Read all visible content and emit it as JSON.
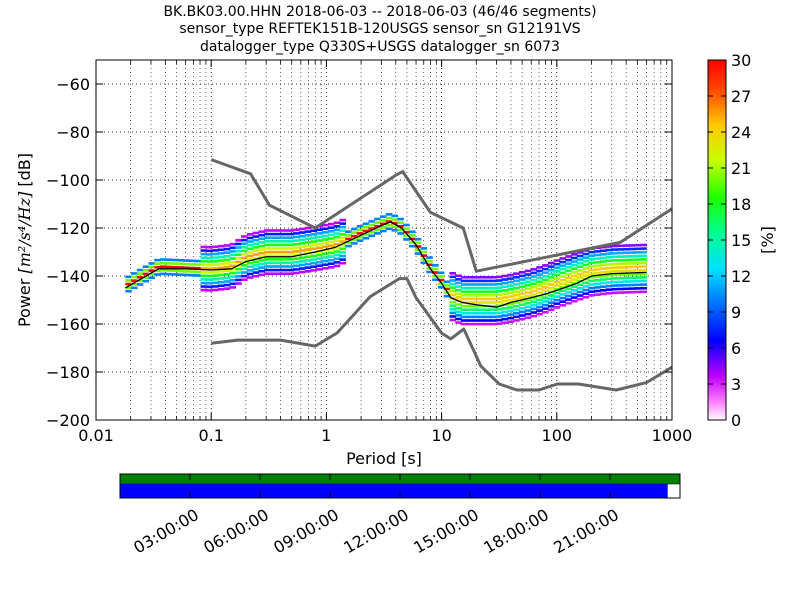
{
  "title_lines": [
    "BK.BK03.00.HHN   2018-06-03 -- 2018-06-03  (46/46 segments)",
    "sensor_type REFTEK151B-120USGS sensor_sn G12191VS",
    "datalogger_type Q330S+USGS datalogger_sn 6073"
  ],
  "colorbar": {
    "label": "[%]",
    "ticks": [
      "0",
      "3",
      "6",
      "9",
      "12",
      "15",
      "18",
      "21",
      "24",
      "27",
      "30"
    ],
    "range": [
      0,
      30
    ]
  },
  "timeline": {
    "ticks": [
      "03:00:00",
      "06:00:00",
      "09:00:00",
      "12:00:00",
      "15:00:00",
      "18:00:00",
      "21:00:00"
    ],
    "top_bar_color": "#008000",
    "bottom_bar_color": "#0000ff",
    "coverage_fraction": 0.978
  },
  "chart_data": {
    "type": "heatmap",
    "xlabel": "Period [s]",
    "ylabel_prefix": "Power ",
    "ylabel_math": "[m²/s⁴/Hz]",
    "ylabel_suffix": " [dB]",
    "xscale": "log",
    "xlim": [
      0.01,
      1000
    ],
    "ylim": [
      -200,
      -50
    ],
    "x_ticks": [
      {
        "value": 0.01,
        "label": "0.01"
      },
      {
        "value": 0.1,
        "label": "0.1"
      },
      {
        "value": 1,
        "label": "1"
      },
      {
        "value": 10,
        "label": "10"
      },
      {
        "value": 100,
        "label": "100"
      },
      {
        "value": 1000,
        "label": "1000"
      }
    ],
    "y_ticks": [
      {
        "value": -60,
        "label": "−60"
      },
      {
        "value": -80,
        "label": "−80"
      },
      {
        "value": -100,
        "label": "−100"
      },
      {
        "value": -120,
        "label": "−120"
      },
      {
        "value": -140,
        "label": "−140"
      },
      {
        "value": -160,
        "label": "−160"
      },
      {
        "value": -180,
        "label": "−180"
      },
      {
        "value": -200,
        "label": "−200"
      }
    ],
    "grid": "dotted",
    "nhnm": [
      [
        0.1,
        -91.5
      ],
      [
        0.22,
        -97.4
      ],
      [
        0.32,
        -110.5
      ],
      [
        0.8,
        -120
      ],
      [
        4,
        -98
      ],
      [
        4.6,
        -96.5
      ],
      [
        8,
        -113.5
      ],
      [
        15.4,
        -120
      ],
      [
        20,
        -138
      ],
      [
        354.8,
        -126
      ],
      [
        1000,
        -112
      ]
    ],
    "nlnm": [
      [
        0.1,
        -168
      ],
      [
        0.17,
        -166.7
      ],
      [
        0.4,
        -166.7
      ],
      [
        0.8,
        -169.2
      ],
      [
        1.24,
        -163.7
      ],
      [
        2.4,
        -148.6
      ],
      [
        4.3,
        -141.1
      ],
      [
        5,
        -141.1
      ],
      [
        6,
        -149
      ],
      [
        10,
        -163.8
      ],
      [
        12,
        -166.2
      ],
      [
        15.6,
        -162.1
      ],
      [
        21.9,
        -177.5
      ],
      [
        31.6,
        -185
      ],
      [
        45,
        -187.5
      ],
      [
        70,
        -187.5
      ],
      [
        101,
        -185
      ],
      [
        154,
        -185
      ],
      [
        328,
        -187.5
      ],
      [
        600,
        -184.4
      ],
      [
        1000,
        -178
      ]
    ],
    "mean_psd": [
      [
        0.018,
        -145
      ],
      [
        0.025,
        -141
      ],
      [
        0.035,
        -137
      ],
      [
        0.06,
        -137
      ],
      [
        0.1,
        -137.5
      ],
      [
        0.15,
        -137
      ],
      [
        0.2,
        -134
      ],
      [
        0.3,
        -132
      ],
      [
        0.5,
        -132
      ],
      [
        0.8,
        -130
      ],
      [
        1.2,
        -128
      ],
      [
        2,
        -123
      ],
      [
        3,
        -119
      ],
      [
        3.6,
        -117.5
      ],
      [
        4.5,
        -120
      ],
      [
        6,
        -127
      ],
      [
        8,
        -137
      ],
      [
        10,
        -143
      ],
      [
        12,
        -149
      ],
      [
        15,
        -151
      ],
      [
        20,
        -152
      ],
      [
        30,
        -153
      ],
      [
        40,
        -151
      ],
      [
        60,
        -149
      ],
      [
        80,
        -147.5
      ],
      [
        100,
        -146
      ],
      [
        150,
        -143
      ],
      [
        200,
        -140
      ],
      [
        300,
        -139
      ],
      [
        600,
        -138.5
      ]
    ],
    "mode_psd": [
      [
        0.018,
        -144
      ],
      [
        0.025,
        -140
      ],
      [
        0.035,
        -136
      ],
      [
        0.06,
        -136.5
      ],
      [
        0.1,
        -137
      ],
      [
        0.15,
        -136
      ],
      [
        0.2,
        -132
      ],
      [
        0.3,
        -130
      ],
      [
        0.5,
        -130
      ],
      [
        0.8,
        -128.5
      ],
      [
        1.2,
        -127
      ],
      [
        2,
        -122
      ],
      [
        3,
        -118.5
      ],
      [
        3.6,
        -117
      ],
      [
        4.5,
        -119.5
      ],
      [
        6,
        -126.5
      ],
      [
        8,
        -136
      ],
      [
        10,
        -142
      ],
      [
        12,
        -148
      ],
      [
        15,
        -150
      ],
      [
        20,
        -150
      ],
      [
        30,
        -150
      ],
      [
        40,
        -149
      ],
      [
        60,
        -147
      ],
      [
        80,
        -145
      ],
      [
        100,
        -143
      ],
      [
        150,
        -140
      ],
      [
        200,
        -138
      ],
      [
        300,
        -137
      ],
      [
        600,
        -136.5
      ]
    ],
    "mean_color": "#000000",
    "noise_model_color": "#666666"
  }
}
